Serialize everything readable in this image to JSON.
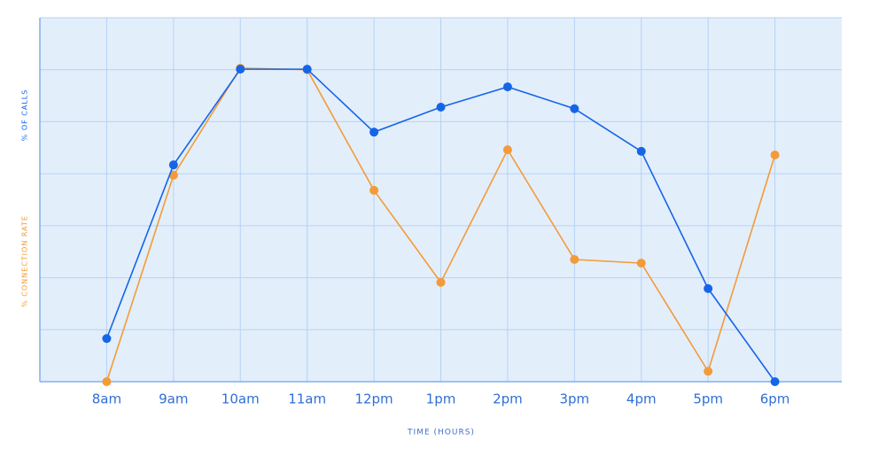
{
  "chart_data": {
    "type": "line",
    "x_label": "TIME (HOURS)",
    "categories": [
      "8am",
      "9am",
      "10am",
      "11am",
      "12pm",
      "1pm",
      "2pm",
      "3pm",
      "4pm",
      "5pm",
      "6pm"
    ],
    "series": [
      {
        "name": "% OF CALLS",
        "color": "#1565e8",
        "values": [
          0.83,
          4.17,
          6.01,
          6.01,
          4.8,
          5.28,
          5.67,
          5.25,
          4.43,
          1.79,
          0
        ]
      },
      {
        "name": "% CONNECTION RATE",
        "color": "#f29b38",
        "values": [
          0,
          3.97,
          6.03,
          6.0,
          3.68,
          1.91,
          4.46,
          2.35,
          2.28,
          0.2,
          4.36
        ]
      }
    ],
    "ylim": [
      0,
      7
    ],
    "yticks": [
      0,
      1,
      2,
      3,
      4,
      5,
      6,
      7
    ],
    "grid": true
  }
}
